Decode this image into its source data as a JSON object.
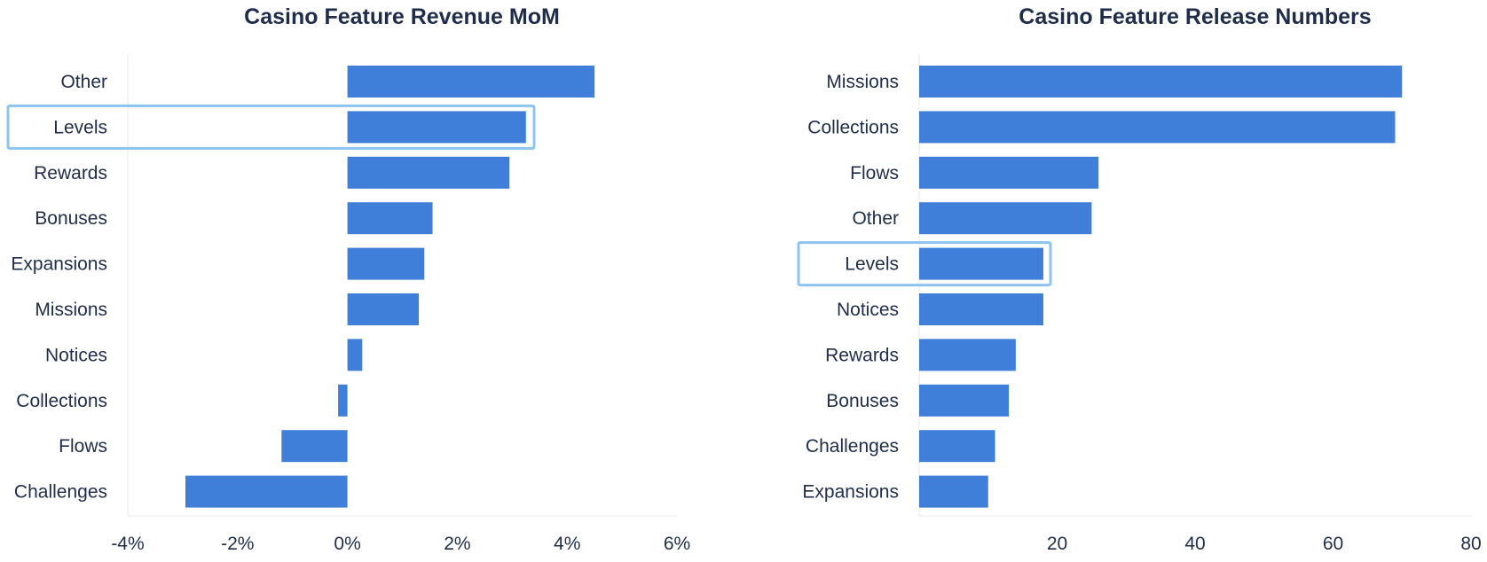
{
  "chart_data": [
    {
      "type": "bar",
      "orientation": "horizontal",
      "title": "Casino Feature Revenue MoM",
      "categories": [
        "Other",
        "Levels",
        "Rewards",
        "Bonuses",
        "Expansions",
        "Missions",
        "Notices",
        "Collections",
        "Flows",
        "Challenges"
      ],
      "values": [
        4.5,
        3.25,
        2.95,
        1.55,
        1.4,
        1.3,
        0.27,
        -0.17,
        -1.2,
        -2.95
      ],
      "value_unit": "%",
      "xlim": [
        -4,
        6
      ],
      "xticks": [
        "-4%",
        "-2%",
        "0%",
        "2%",
        "4%",
        "6%"
      ],
      "highlighted_category": "Levels",
      "bar_color": "#3f7fd9",
      "highlight_color": "#8cc3f0"
    },
    {
      "type": "bar",
      "orientation": "horizontal",
      "title": "Casino Feature Release Numbers",
      "categories": [
        "Missions",
        "Collections",
        "Flows",
        "Other",
        "Levels",
        "Notices",
        "Rewards",
        "Bonuses",
        "Challenges",
        "Expansions"
      ],
      "values": [
        70,
        69,
        26,
        25,
        18,
        18,
        14,
        13,
        11,
        10
      ],
      "xlim": [
        0,
        80
      ],
      "xticks": [
        "20",
        "40",
        "60",
        "80"
      ],
      "highlighted_category": "Levels",
      "bar_color": "#3f7fd9",
      "highlight_color": "#8cc3f0"
    }
  ]
}
